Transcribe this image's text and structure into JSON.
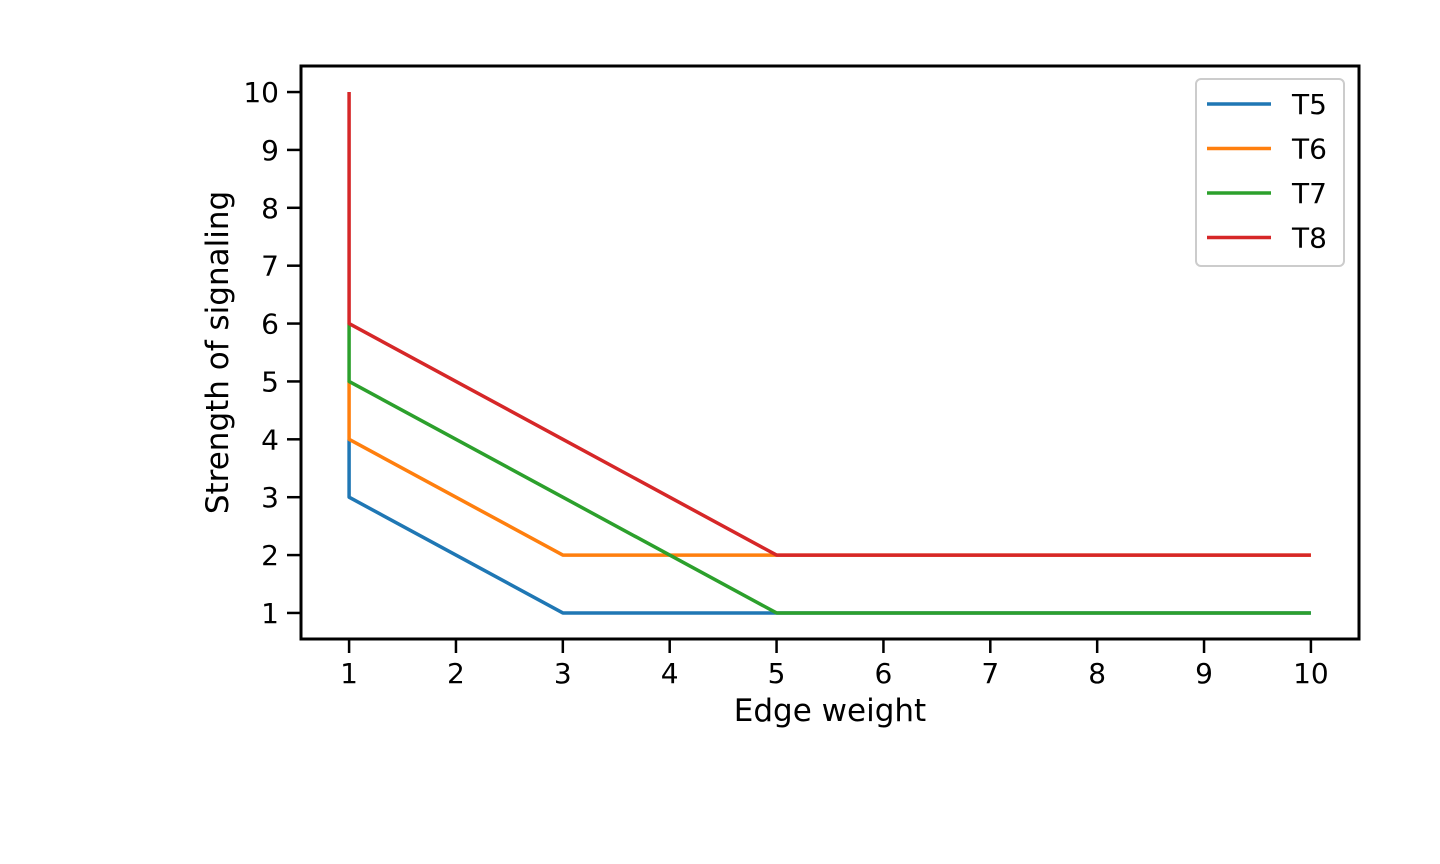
{
  "chart_data": {
    "type": "line",
    "title": "",
    "xlabel": "Edge weight",
    "ylabel": "Strength of signaling",
    "xlim": [
      0.55,
      10.45
    ],
    "ylim": [
      0.55,
      10.45
    ],
    "xticks": [
      1,
      2,
      3,
      4,
      5,
      6,
      7,
      8,
      9,
      10
    ],
    "yticks": [
      1,
      2,
      3,
      4,
      5,
      6,
      7,
      8,
      9,
      10
    ],
    "x": [
      1,
      1,
      2,
      3,
      4,
      5,
      6,
      7,
      8,
      9,
      10
    ],
    "series": [
      {
        "name": "T5",
        "color": "#1f77b4",
        "values": [
          4,
          3,
          2,
          1,
          1,
          1,
          1,
          1,
          1,
          1,
          1
        ]
      },
      {
        "name": "T6",
        "color": "#ff7f0e",
        "values": [
          5,
          4,
          3,
          2,
          2,
          2,
          2,
          2,
          2,
          2,
          2
        ]
      },
      {
        "name": "T7",
        "color": "#2ca02c",
        "values": [
          6,
          5,
          4,
          3,
          2,
          1,
          1,
          1,
          1,
          1,
          1
        ]
      },
      {
        "name": "T8",
        "color": "#d62728",
        "values": [
          10,
          6,
          5,
          4,
          3,
          2,
          2,
          2,
          2,
          2,
          2
        ]
      }
    ],
    "grid": false,
    "legend_position": "top-right"
  }
}
